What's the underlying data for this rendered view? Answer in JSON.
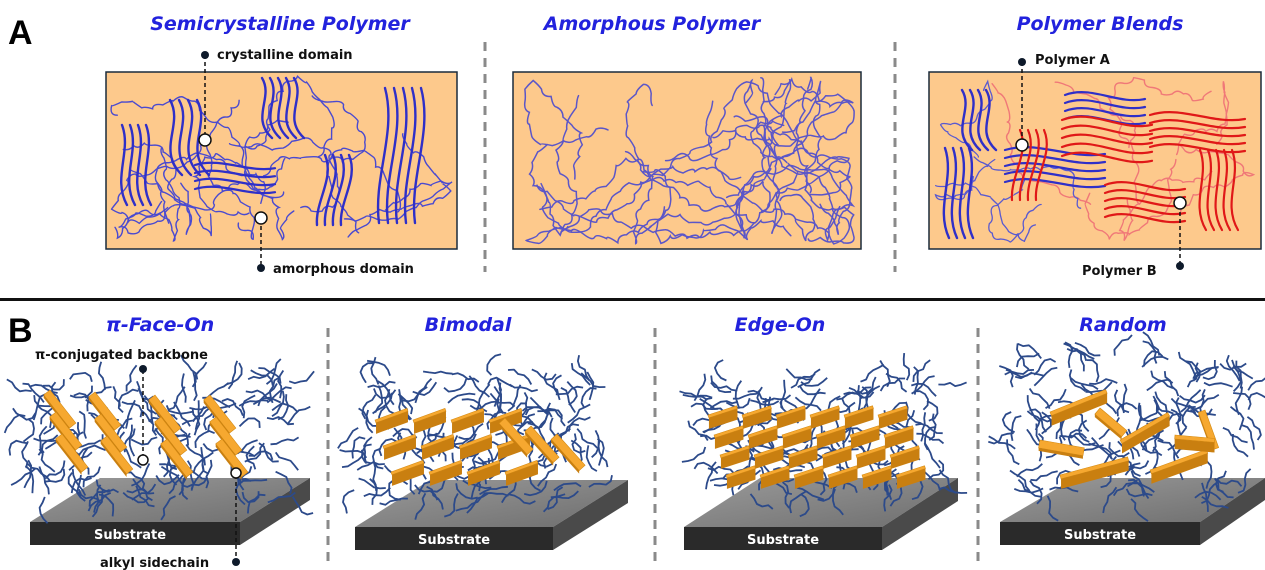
{
  "panels": {
    "A": {
      "letter": "A",
      "titles": [
        "Semicrystalline Polymer",
        "Amorphous Polymer",
        "Polymer Blends"
      ],
      "callouts": {
        "crystalline": "crystalline domain",
        "amorphous": "amorphous domain",
        "polymer_a": "Polymer A",
        "polymer_b": "Polymer B"
      }
    },
    "B": {
      "letter": "B",
      "titles": [
        "π-Face-On",
        "Bimodal",
        "Edge-On",
        "Random"
      ],
      "callouts": {
        "backbone": "π-conjugated backbone",
        "sidechain": "alkyl sidechain"
      },
      "substrate_label": "Substrate"
    }
  },
  "colors": {
    "box_fill": "#fdc98c",
    "polymer_blue": "#2f2fc8",
    "polymer_red": "#e01818",
    "backbone_orange": "#f5a623",
    "sidechain_blue": "#2c4a8a",
    "substrate_top": "#888888",
    "substrate_side": "#2a2a2a",
    "title_blue": "#2222dd"
  }
}
